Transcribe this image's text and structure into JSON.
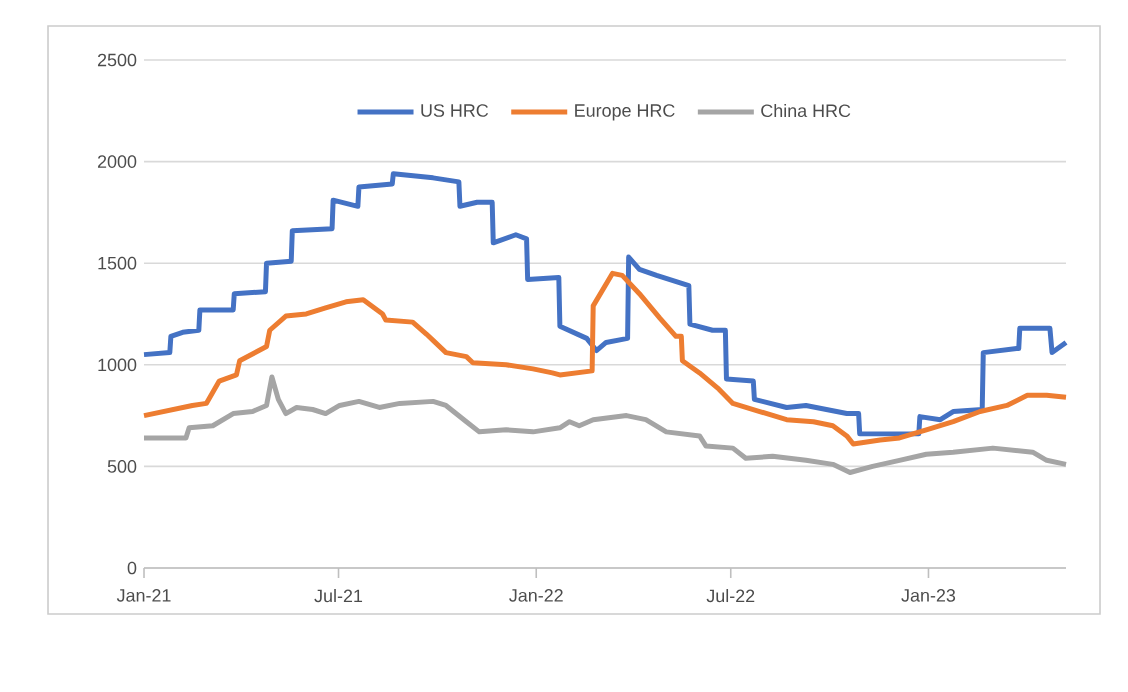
{
  "chart_data": {
    "type": "line",
    "grid": "y",
    "legend": "top",
    "xlim": [
      "2021-01-01",
      "2023-05-09"
    ],
    "xticks": [
      {
        "value": "2021-01-01",
        "label": "Jan-21"
      },
      {
        "value": "2021-07-01",
        "label": "Jul-21"
      },
      {
        "value": "2022-01-01",
        "label": "Jan-22"
      },
      {
        "value": "2022-07-01",
        "label": "Jul-22"
      },
      {
        "value": "2023-01-01",
        "label": "Jan-23"
      }
    ],
    "ylim": [
      0,
      2500
    ],
    "yticks": [
      0,
      500,
      1000,
      1500,
      2000,
      2500
    ],
    "series": [
      {
        "name": "US HRC",
        "color": "#4472c4",
        "x": [
          "2021-01-01",
          "2021-01-25",
          "2021-01-26",
          "2021-02-06",
          "2021-02-21",
          "2021-02-22",
          "2021-03-25",
          "2021-03-26",
          "2021-04-24",
          "2021-04-25",
          "2021-05-18",
          "2021-05-19",
          "2021-06-25",
          "2021-06-26",
          "2021-07-19",
          "2021-07-20",
          "2021-08-20",
          "2021-08-21",
          "2021-09-27",
          "2021-10-21",
          "2021-10-22",
          "2021-11-07",
          "2021-11-21",
          "2021-11-22",
          "2021-12-13",
          "2021-12-23",
          "2021-12-24",
          "2022-01-22",
          "2022-01-23",
          "2022-02-17",
          "2022-02-26",
          "2022-03-07",
          "2022-03-27",
          "2022-03-28",
          "2022-04-07",
          "2022-04-23",
          "2022-05-23",
          "2022-05-24",
          "2022-06-14",
          "2022-06-26",
          "2022-06-27",
          "2022-07-22",
          "2022-07-23",
          "2022-08-22",
          "2022-09-09",
          "2022-09-28",
          "2022-10-17",
          "2022-10-28",
          "2022-10-29",
          "2022-12-05",
          "2022-12-23",
          "2022-12-24",
          "2023-01-12",
          "2023-01-24",
          "2023-02-20",
          "2023-02-21",
          "2023-03-24",
          "2023-03-26",
          "2023-03-27",
          "2023-04-24",
          "2023-04-26",
          "2023-05-09"
        ],
        "values": [
          1050,
          1060,
          1140,
          1160,
          1170,
          1270,
          1270,
          1350,
          1360,
          1500,
          1510,
          1660,
          1670,
          1810,
          1780,
          1875,
          1890,
          1940,
          1920,
          1900,
          1780,
          1800,
          1800,
          1600,
          1640,
          1620,
          1420,
          1430,
          1190,
          1130,
          1070,
          1110,
          1130,
          1530,
          1470,
          1440,
          1390,
          1200,
          1170,
          1170,
          930,
          920,
          830,
          790,
          800,
          780,
          760,
          760,
          660,
          660,
          660,
          745,
          730,
          770,
          780,
          1060,
          1080,
          1080,
          1180,
          1180,
          1060,
          1110
        ]
      },
      {
        "name": "Europe HRC",
        "color": "#ed7d31",
        "x": [
          "2021-01-01",
          "2021-02-15",
          "2021-02-28",
          "2021-03-12",
          "2021-03-28",
          "2021-03-31",
          "2021-04-25",
          "2021-04-28",
          "2021-05-13",
          "2021-06-01",
          "2021-06-19",
          "2021-07-08",
          "2021-07-24",
          "2021-08-11",
          "2021-08-14",
          "2021-09-08",
          "2021-09-21",
          "2021-09-27",
          "2021-10-09",
          "2021-10-28",
          "2021-11-03",
          "2021-12-04",
          "2021-12-29",
          "2022-01-16",
          "2022-01-23",
          "2022-02-22",
          "2022-02-23",
          "2022-03-13",
          "2022-03-22",
          "2022-04-07",
          "2022-04-26",
          "2022-05-11",
          "2022-05-16",
          "2022-05-17",
          "2022-06-02",
          "2022-06-20",
          "2022-07-03",
          "2022-07-28",
          "2022-08-22",
          "2022-09-16",
          "2022-10-04",
          "2022-10-17",
          "2022-10-23",
          "2022-11-17",
          "2022-12-05",
          "2022-12-30",
          "2023-01-24",
          "2023-02-18",
          "2023-03-15",
          "2023-04-03",
          "2023-04-21",
          "2023-05-09"
        ],
        "values": [
          750,
          800,
          810,
          920,
          950,
          1020,
          1090,
          1170,
          1240,
          1250,
          1280,
          1310,
          1320,
          1250,
          1220,
          1210,
          1150,
          1120,
          1060,
          1040,
          1010,
          1000,
          980,
          960,
          950,
          970,
          1290,
          1450,
          1440,
          1350,
          1230,
          1140,
          1140,
          1020,
          960,
          880,
          810,
          770,
          730,
          720,
          700,
          650,
          610,
          630,
          640,
          680,
          720,
          770,
          800,
          850,
          850,
          840
        ]
      },
      {
        "name": "China HRC",
        "color": "#a5a5a5",
        "x": [
          "2021-01-01",
          "2021-02-09",
          "2021-02-12",
          "2021-03-06",
          "2021-03-25",
          "2021-04-12",
          "2021-04-25",
          "2021-04-30",
          "2021-05-06",
          "2021-05-13",
          "2021-05-23",
          "2021-06-07",
          "2021-06-19",
          "2021-07-02",
          "2021-07-20",
          "2021-08-08",
          "2021-08-27",
          "2021-09-27",
          "2021-10-09",
          "2021-10-28",
          "2021-11-09",
          "2021-12-04",
          "2021-12-29",
          "2022-01-23",
          "2022-02-01",
          "2022-02-10",
          "2022-02-23",
          "2022-03-26",
          "2022-04-13",
          "2022-05-02",
          "2022-06-02",
          "2022-06-08",
          "2022-07-03",
          "2022-07-15",
          "2022-08-09",
          "2022-09-09",
          "2022-10-04",
          "2022-10-20",
          "2022-11-10",
          "2022-12-05",
          "2022-12-30",
          "2023-01-24",
          "2023-03-02",
          "2023-04-08",
          "2023-04-21",
          "2023-05-09"
        ],
        "values": [
          640,
          640,
          690,
          700,
          760,
          770,
          800,
          940,
          830,
          760,
          790,
          780,
          760,
          800,
          820,
          790,
          810,
          820,
          800,
          720,
          670,
          680,
          670,
          690,
          720,
          700,
          730,
          750,
          730,
          670,
          650,
          600,
          590,
          540,
          550,
          530,
          510,
          470,
          500,
          530,
          560,
          570,
          590,
          570,
          530,
          510
        ]
      }
    ]
  }
}
